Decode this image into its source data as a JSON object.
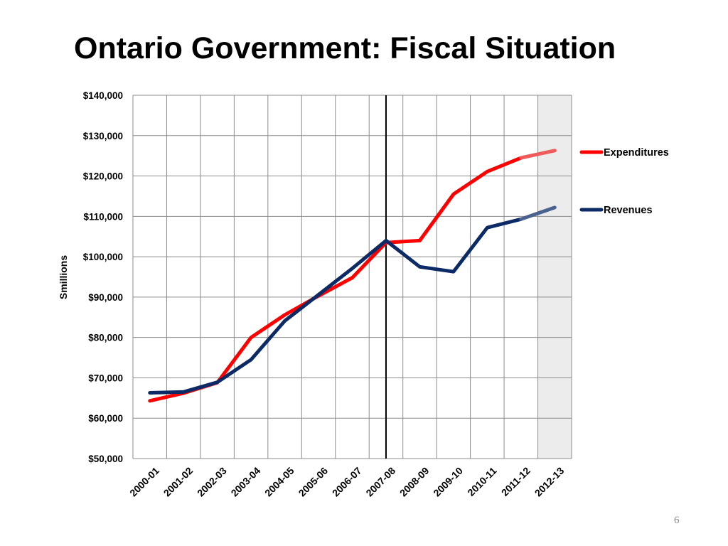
{
  "page": {
    "title": "Ontario Government: Fiscal Situation",
    "page_number": "6"
  },
  "chart_data": {
    "type": "line",
    "title": "Ontario Government: Fiscal Situation",
    "xlabel": "",
    "ylabel": "Smillions",
    "ylim": [
      50000,
      140000
    ],
    "y_ticks": [
      50000,
      60000,
      70000,
      80000,
      90000,
      100000,
      110000,
      120000,
      130000,
      140000
    ],
    "y_tick_labels": [
      "$50,000",
      "$60,000",
      "$70,000",
      "$80,000",
      "$90,000",
      "$100,000",
      "$110,000",
      "$120,000",
      "$130,000",
      "$140,000"
    ],
    "categories": [
      "2000-01",
      "2001-02",
      "2002-03",
      "2003-04",
      "2004-05",
      "2005-06",
      "2006-07",
      "2007-08",
      "2008-09",
      "2009-10",
      "2010-11",
      "2011-12",
      "2012-13"
    ],
    "grid": true,
    "legend_position": "right",
    "divider_category": "2007-08",
    "shaded_category": "2012-13",
    "series": [
      {
        "name": "Expenditures",
        "color": "#ff0000",
        "projected_color": "#f05a5a",
        "values": [
          64300,
          66200,
          68800,
          80000,
          85600,
          90300,
          94800,
          103500,
          104000,
          115500,
          121100,
          124500,
          126300
        ]
      },
      {
        "name": "Revenues",
        "color": "#0b2a66",
        "projected_color": "#4a628f",
        "values": [
          66300,
          66500,
          68900,
          74500,
          84100,
          90600,
          97100,
          104000,
          97500,
          96300,
          107200,
          109300,
          112200
        ]
      }
    ]
  }
}
